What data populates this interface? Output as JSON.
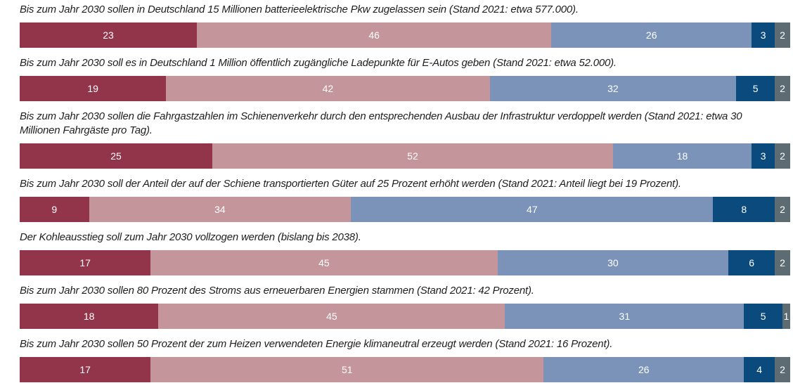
{
  "chart_data": {
    "type": "stacked-barh",
    "categories": [
      "Bis zum Jahr 2030 sollen in Deutschland 15 Millionen batterieelektrische Pkw zugelassen sein (Stand 2021: etwa 577.000).",
      "Bis zum Jahr 2030 soll es in Deutschland 1 Million öffentlich zugängliche Ladepunkte für E-Autos geben (Stand 2021: etwa 52.000).",
      "Bis zum Jahr 2030 sollen die Fahrgastzahlen im Schienenverkehr durch den entsprechenden Ausbau der Infrastruktur verdoppelt werden (Stand 2021: etwa 30 Millionen Fahrgäste pro Tag).",
      "Bis zum Jahr 2030 soll der Anteil der auf der Schiene transportierten Güter auf 25 Prozent erhöht werden (Stand 2021: Anteil liegt bei 19 Prozent).",
      "Der Kohleausstieg soll zum Jahr 2030 vollzogen werden (bislang bis 2038).",
      "Bis zum Jahr 2030 sollen 80 Prozent des Stroms aus erneuerbaren Energien stammen (Stand 2021: 42 Prozent).",
      "Bis zum Jahr 2030 sollen 50 Prozent der zum Heizen verwendeten Energie klimaneutral erzeugt werden (Stand 2021: 16 Prozent)."
    ],
    "series": [
      {
        "color": "#93354a",
        "values": [
          23,
          19,
          25,
          9,
          17,
          18,
          17
        ]
      },
      {
        "color": "#c4959a",
        "values": [
          46,
          42,
          52,
          34,
          45,
          45,
          51
        ]
      },
      {
        "color": "#7b93b9",
        "values": [
          26,
          32,
          18,
          47,
          30,
          31,
          26
        ]
      },
      {
        "color": "#0b4a7d",
        "values": [
          3,
          5,
          3,
          8,
          6,
          5,
          4
        ]
      },
      {
        "color": "#5d6b73",
        "values": [
          2,
          2,
          2,
          2,
          2,
          1,
          2
        ]
      }
    ],
    "xlim": [
      0,
      100
    ]
  }
}
